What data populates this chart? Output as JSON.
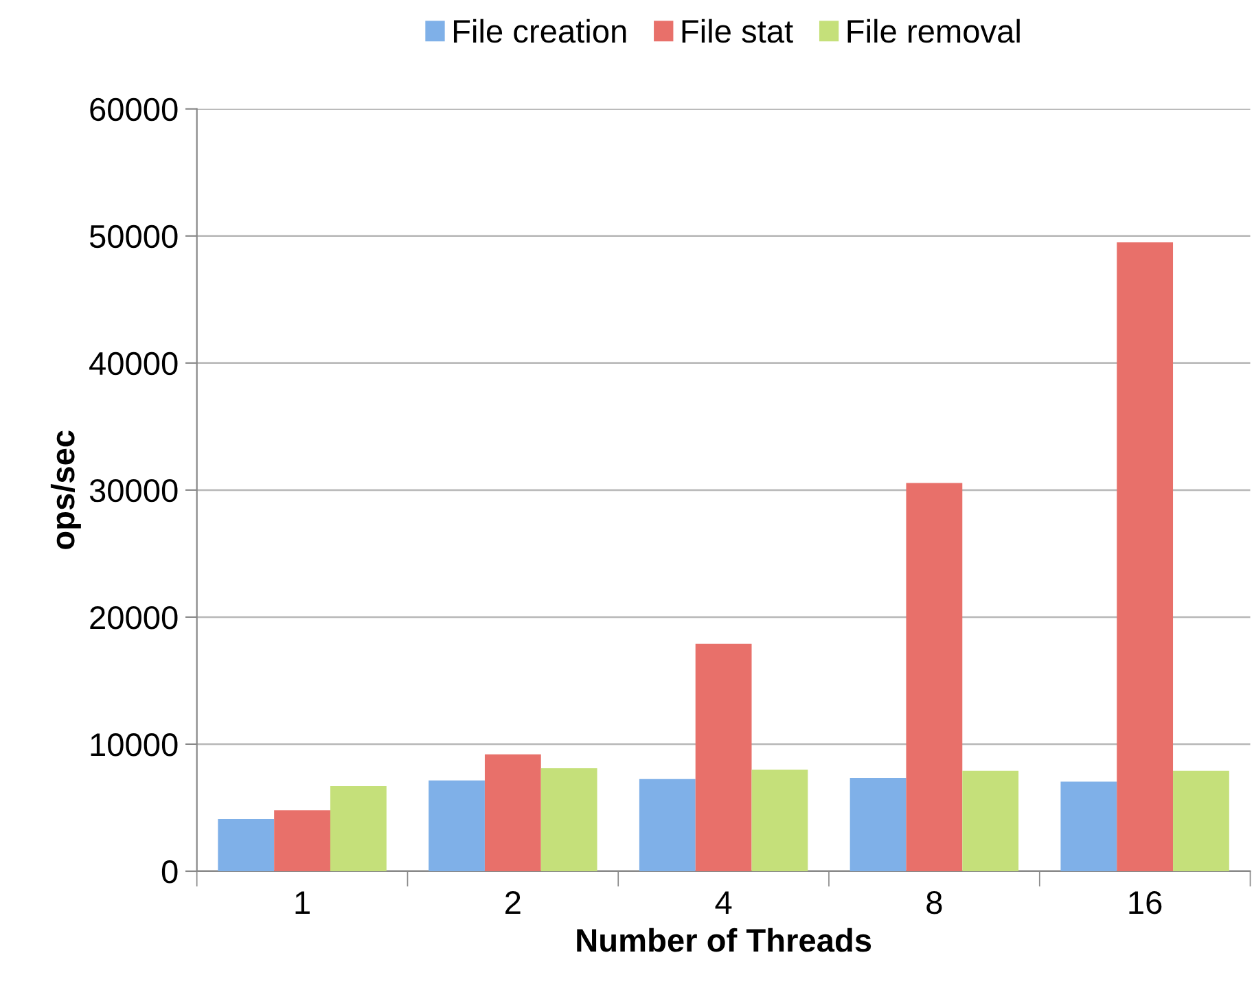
{
  "chart_data": {
    "type": "bar",
    "xlabel": "Number of Threads",
    "ylabel": "ops/sec",
    "categories": [
      "1",
      "2",
      "4",
      "8",
      "16"
    ],
    "series": [
      {
        "name": "File creation",
        "color": "#7fb0e8",
        "values": [
          4100,
          7150,
          7250,
          7350,
          7050
        ]
      },
      {
        "name": "File stat",
        "color": "#e8706a",
        "values": [
          4800,
          9200,
          17900,
          30550,
          49500
        ]
      },
      {
        "name": "File removal",
        "color": "#c5e07a",
        "values": [
          6700,
          8100,
          8000,
          7900,
          7900
        ]
      }
    ],
    "ylim": [
      0,
      60000
    ],
    "yticks": [
      0,
      10000,
      20000,
      30000,
      40000,
      50000,
      60000
    ],
    "grid": "y",
    "legend": "top"
  }
}
